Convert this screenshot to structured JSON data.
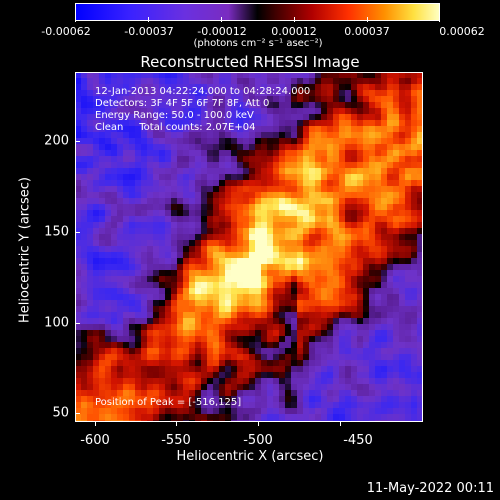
{
  "colorbar": {
    "ticks": [
      "-0.00062",
      "-0.00037",
      "-0.00012",
      "0.00012",
      "0.00037",
      "0.00062"
    ],
    "units": "(photons cm⁻² s⁻¹ asec⁻²)",
    "colors": {
      "low": "#0000ff",
      "mid": "#8000c0",
      "zero": "#000000",
      "high": "#ff4000",
      "top": "#ffff80"
    }
  },
  "title": "Reconstructed RHESSI Image",
  "info": {
    "line1": "12-Jan-2013 04:22:24.000 to 04:28:24.000",
    "line2": "Detectors: 3F 4F 5F 6F 7F 8F, Att 0",
    "line3": "Energy Range: 50.0 - 100.0 keV",
    "line4": "Clean     Total counts: 2.07E+04"
  },
  "peak": "Position of Peak = [-516,125]",
  "x_axis": {
    "title": "Heliocentric X (arcsec)",
    "ticks": [
      "-600",
      "-550",
      "-500",
      "-450"
    ]
  },
  "y_axis": {
    "title": "Heliocentric Y (arcsec)",
    "ticks": [
      "200",
      "150",
      "100",
      "50"
    ]
  },
  "footer": "11-May-2022 00:11"
}
